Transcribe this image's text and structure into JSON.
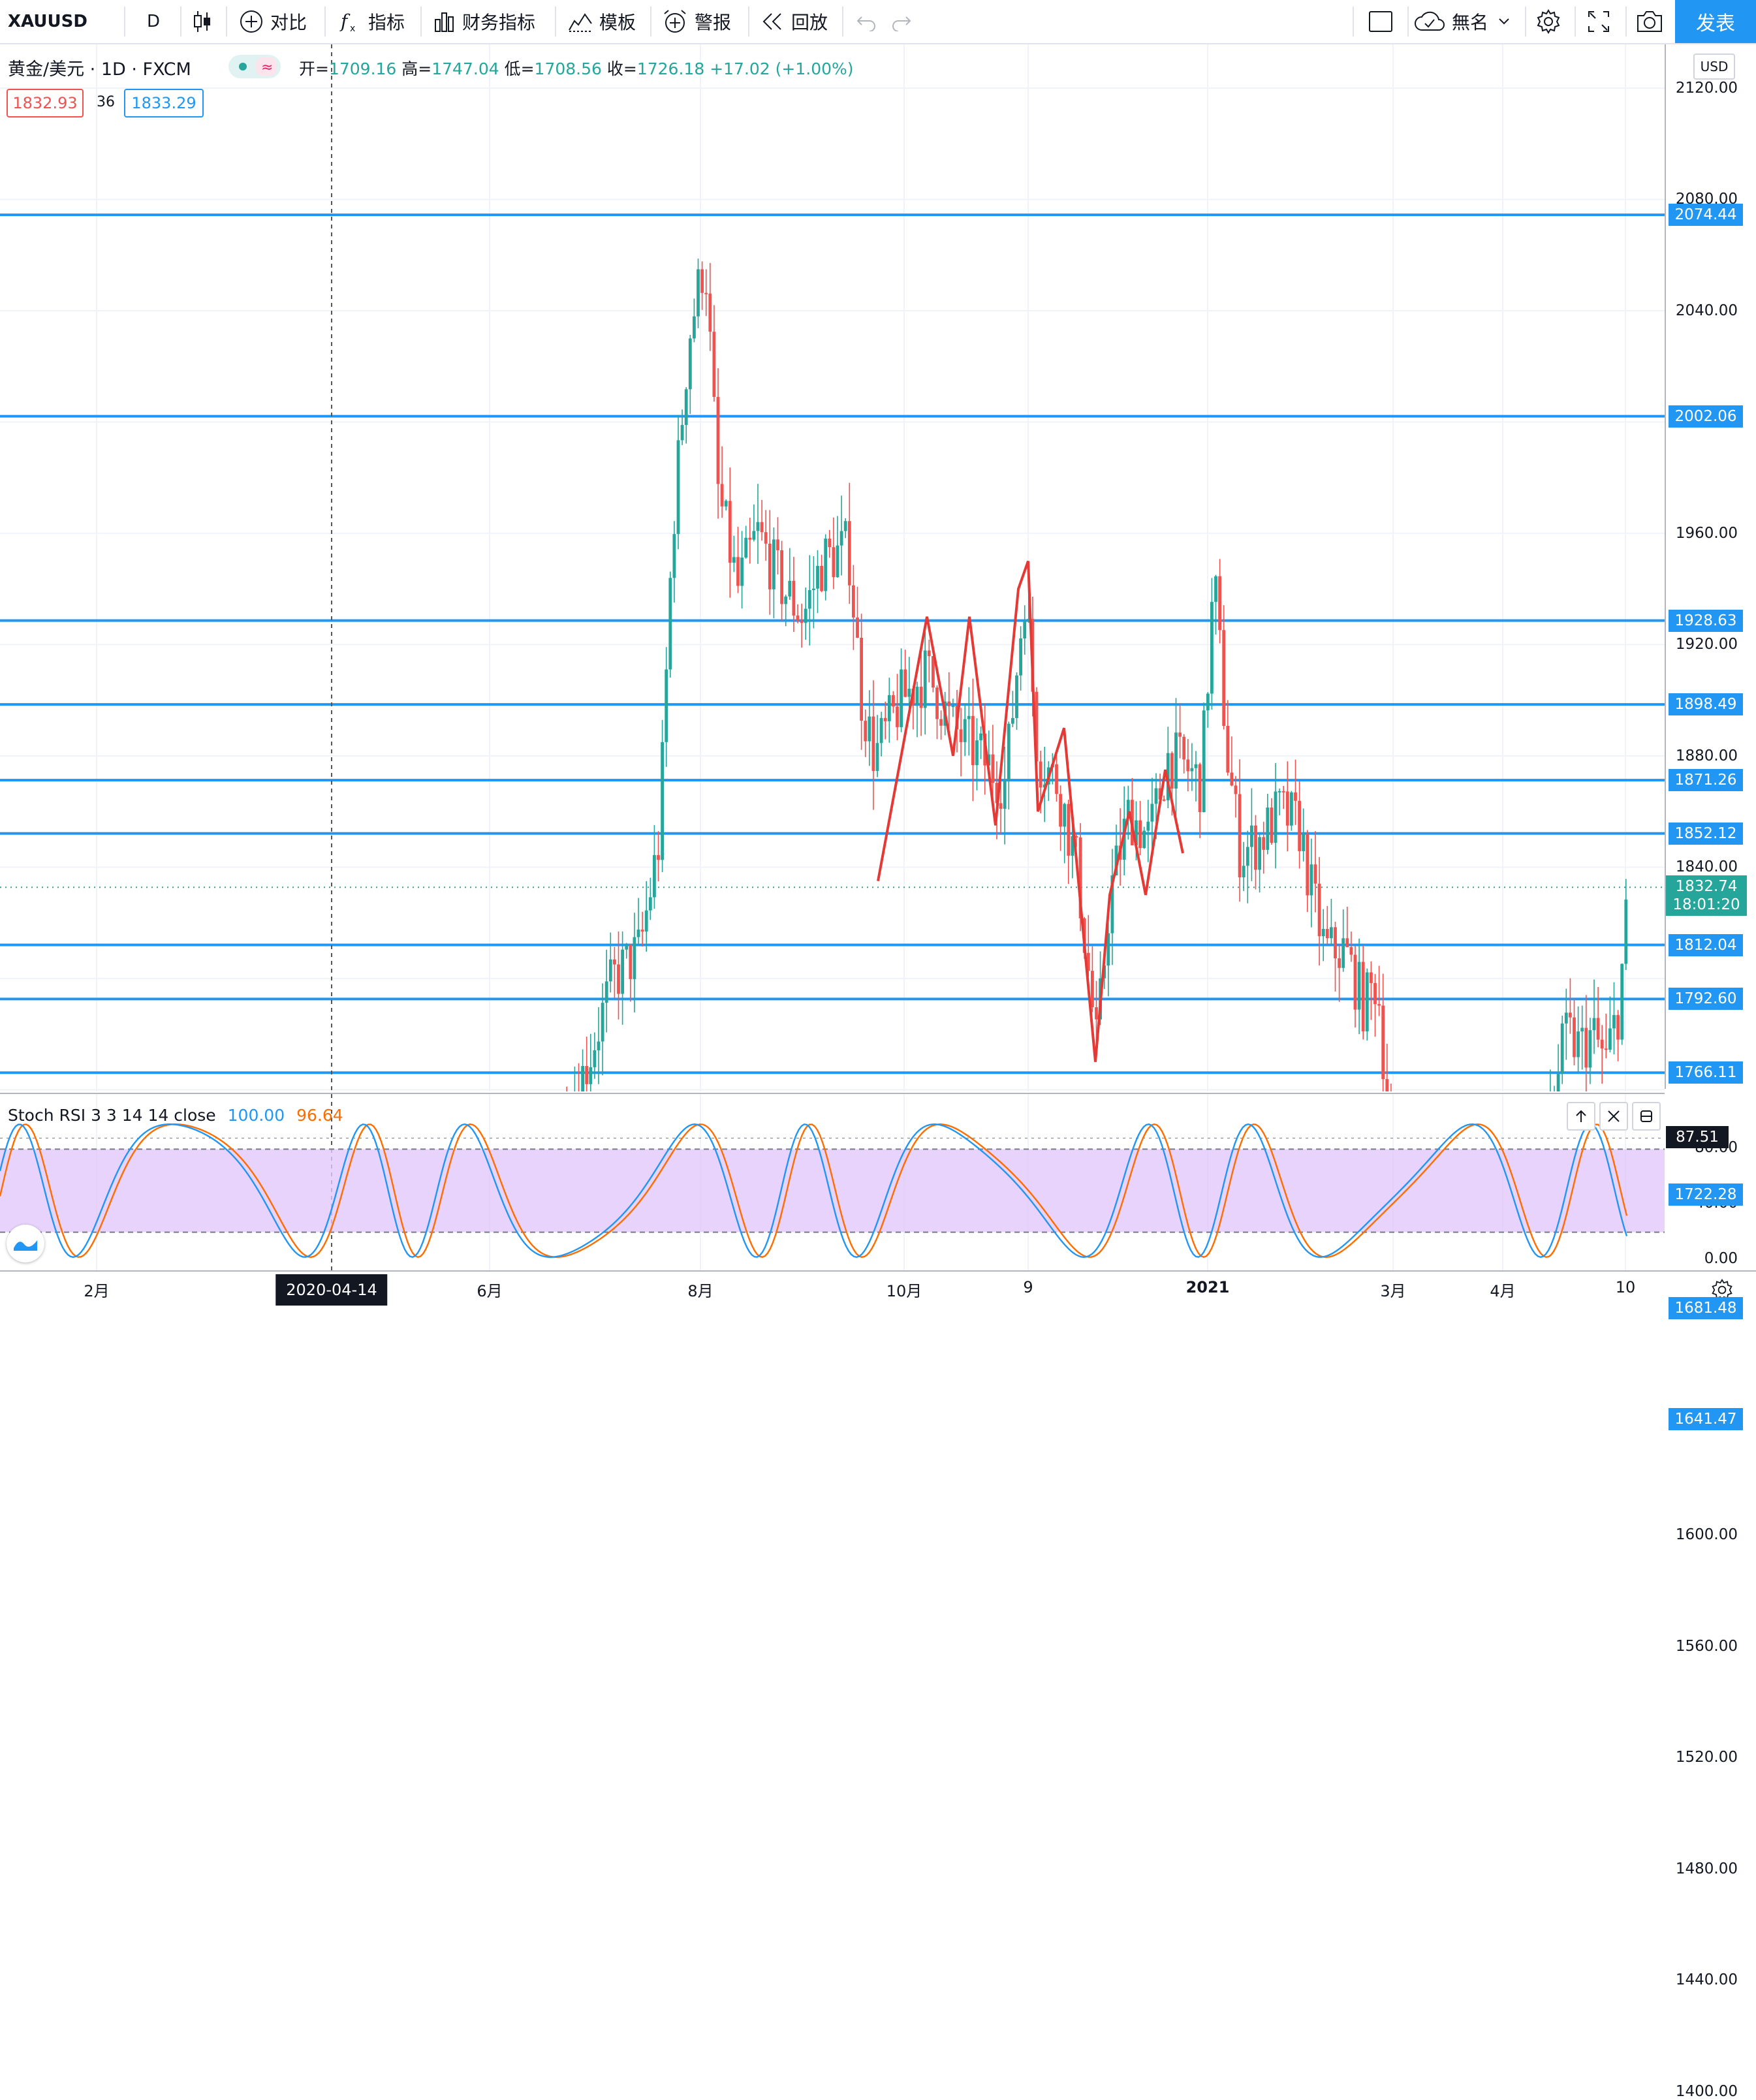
{
  "toolbar": {
    "symbol": "XAUUSD",
    "interval": "D",
    "compare_label": "对比",
    "indicators_label": "指标",
    "financials_label": "财务指标",
    "templates_label": "模板",
    "alert_label": "警报",
    "replay_label": "回放",
    "layout_name": "無名",
    "publish_label": "发表"
  },
  "legend": {
    "title": "黄金/美元 · 1D · FXCM",
    "open_key": "开=",
    "open": "1709.16",
    "high_key": "高=",
    "high": "1747.04",
    "low_key": "低=",
    "low": "1708.56",
    "close_key": "收=",
    "close": "1726.18",
    "change": "+17.02 (+1.00%)",
    "sell_price": "1832.93",
    "spread": "36",
    "buy_price": "1833.29"
  },
  "price_axis": {
    "currency": "USD",
    "ticks": [
      "2120.00",
      "2080.00",
      "2040.00",
      "1960.00",
      "1920.00",
      "1880.00",
      "1840.00",
      "1600.00",
      "1560.00",
      "1520.00",
      "1480.00",
      "1440.00",
      "1400.00"
    ],
    "current_price": "1832.74",
    "countdown": "18:01:20"
  },
  "horizontal_levels": [
    "2074.44",
    "2002.06",
    "1928.63",
    "1898.49",
    "1871.26",
    "1852.12",
    "1812.04",
    "1792.60",
    "1766.11",
    "1722.28",
    "1681.48",
    "1641.47"
  ],
  "stoch_rsi": {
    "label": "Stoch RSI 3 3 14 14 close",
    "k_value": "100.00",
    "d_value": "96.64",
    "current": "87.51",
    "ticks": [
      "80.00",
      "40.00",
      "0.00"
    ],
    "upper_band": 80,
    "lower_band": 20,
    "k_color": "#2196f3",
    "d_color": "#ff6d00",
    "band_fill": "#e1c8fa"
  },
  "time_axis": {
    "labels": [
      "2月",
      "6月",
      "8月",
      "10月",
      "9",
      "2021",
      "3月",
      "4月",
      "10"
    ],
    "crosshair_date": "2020-04-14"
  },
  "colors": {
    "up": "#26a69a",
    "down": "#ef5350",
    "level_line": "#2196f3",
    "zigzag": "#e53935",
    "accent": "#2196f3"
  },
  "icons": [
    "candlestick-icon",
    "compare-plus-icon",
    "fx-indicator-icon",
    "financials-bars-icon",
    "templates-icon",
    "alarm-clock-icon",
    "replay-rewind-icon",
    "undo-icon",
    "redo-icon",
    "fullscreen-square-icon",
    "cloud-save-icon",
    "gear-icon",
    "expand-icon",
    "camera-icon",
    "eye-toggle-icon",
    "settings-gear-icon"
  ]
}
